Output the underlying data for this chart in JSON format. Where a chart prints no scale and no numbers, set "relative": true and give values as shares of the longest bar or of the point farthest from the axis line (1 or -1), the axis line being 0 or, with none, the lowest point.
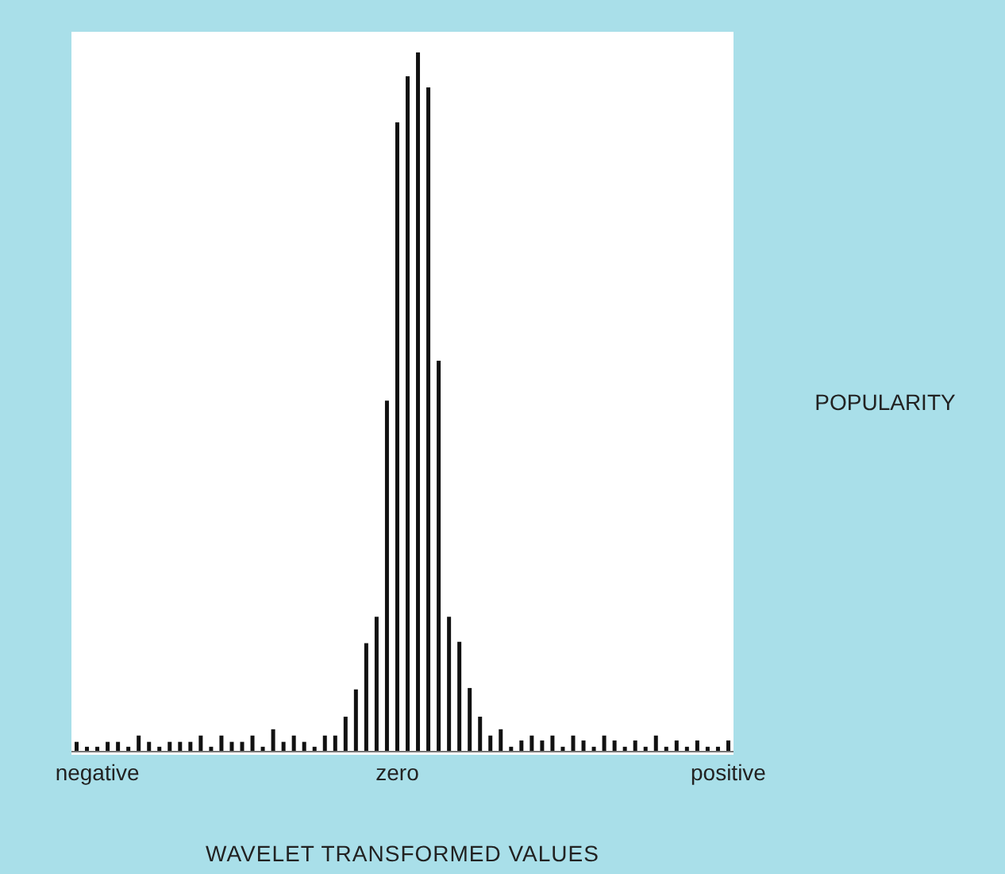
{
  "chart_data": {
    "type": "bar",
    "relative": true,
    "xlabel": "WAVELET TRANSFORMED VALUES",
    "ylabel": "POPULARITY",
    "color": "#111111",
    "categories": [
      null,
      null,
      "negative",
      null,
      null,
      null,
      null,
      null,
      null,
      null,
      null,
      null,
      null,
      null,
      null,
      null,
      null,
      null,
      null,
      null,
      null,
      null,
      null,
      null,
      null,
      null,
      null,
      null,
      null,
      null,
      null,
      "zero",
      null,
      null,
      null,
      null,
      null,
      null,
      null,
      null,
      null,
      null,
      null,
      null,
      null,
      null,
      null,
      null,
      null,
      null,
      null,
      null,
      null,
      null,
      null,
      null,
      null,
      null,
      null,
      null,
      null,
      null,
      null,
      "positive"
    ],
    "values": [
      0.014,
      0.007,
      0.007,
      0.014,
      0.014,
      0.007,
      0.023,
      0.014,
      0.007,
      0.014,
      0.014,
      0.014,
      0.023,
      0.007,
      0.023,
      0.014,
      0.014,
      0.023,
      0.007,
      0.032,
      0.014,
      0.023,
      0.014,
      0.007,
      0.023,
      0.023,
      0.05,
      0.089,
      0.155,
      0.193,
      0.502,
      0.9,
      0.966,
      1,
      0.95,
      0.559,
      0.193,
      0.157,
      0.091,
      0.05,
      0.023,
      0.032,
      0.007,
      0.016,
      0.023,
      0.016,
      0.023,
      0.007,
      0.023,
      0.016,
      0.007,
      0.023,
      0.016,
      0.007,
      0.016,
      0.007,
      0.023,
      0.007,
      0.016,
      0.007,
      0.016,
      0.007,
      0.007,
      0.016
    ]
  }
}
